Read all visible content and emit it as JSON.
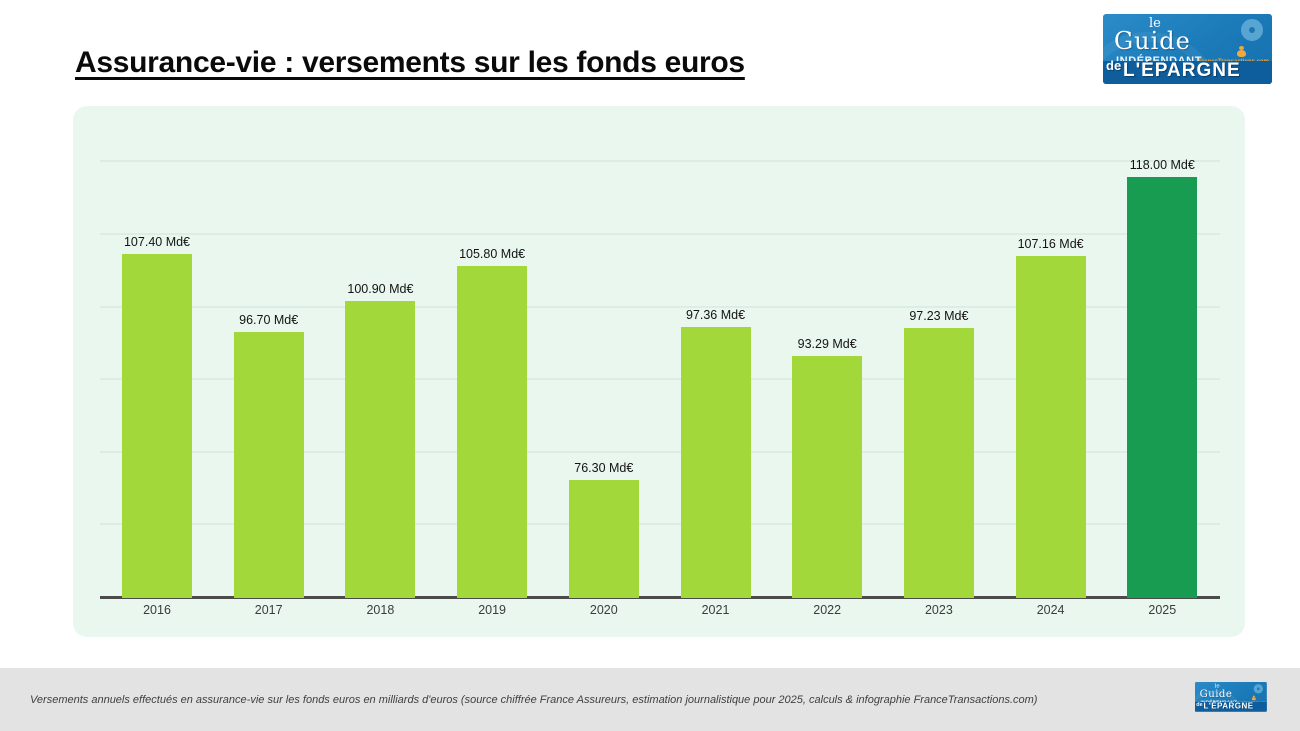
{
  "header": {
    "title": "Assurance-vie : versements sur les fonds euros"
  },
  "logo": {
    "le": "le",
    "guide": "Guide",
    "independant": "INDÉPENDANT",
    "site": "FranceTransactions.com",
    "de": "de",
    "epargne": "L'ÉPARGNE",
    "bg_color": "#1b7ab8",
    "band_color": "#0e5e9e",
    "accent_color": "#f2a73e"
  },
  "chart_data": {
    "type": "bar",
    "title": "Assurance-vie : versements sur les fonds euros",
    "categories": [
      "2016",
      "2017",
      "2018",
      "2019",
      "2020",
      "2021",
      "2022",
      "2023",
      "2024",
      "2025"
    ],
    "values": [
      107.4,
      96.7,
      100.9,
      105.8,
      76.3,
      97.36,
      93.29,
      97.23,
      107.16,
      118.0
    ],
    "labels": [
      "107.40 Md€",
      "96.70 Md€",
      "100.90 Md€",
      "105.80 Md€",
      "76.30 Md€",
      "97.36 Md€",
      "93.29 Md€",
      "97.23 Md€",
      "107.16 Md€",
      "118.00 Md€"
    ],
    "unit": "Md€",
    "xlabel": "",
    "ylabel": "",
    "ylim": [
      60,
      125
    ],
    "gridline_values": [
      70,
      80,
      90,
      100,
      110,
      120
    ],
    "grid": true,
    "legend_position": "none",
    "bar_color": "#a3d83b",
    "highlight_color": "#189c52",
    "highlight_index": 9,
    "panel_background": "#e9f7ef"
  },
  "footer": {
    "caption": "Versements annuels effectués en assurance-vie sur les fonds euros en milliards d'euros (source chiffrée France Assureurs, estimation journalistique pour 2025, calculs & infographie FranceTransactions.com)"
  }
}
